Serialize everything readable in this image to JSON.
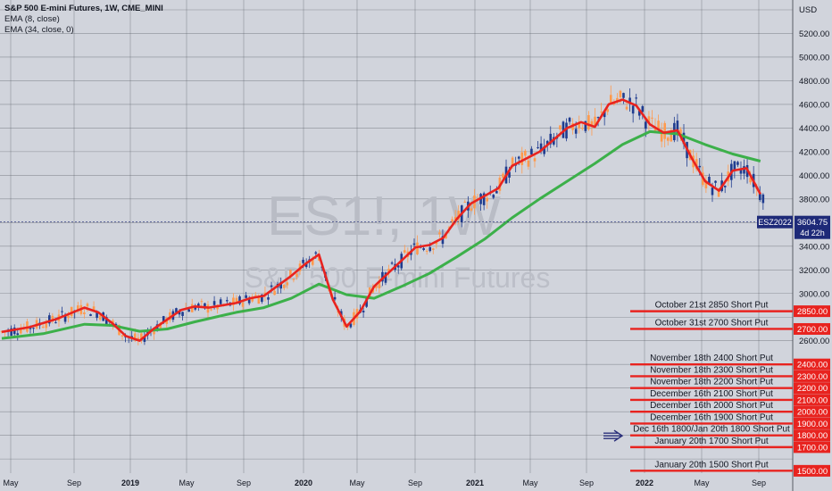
{
  "legend": {
    "title": "S&P 500 E-mini Futures, 1W, CME_MINI",
    "ema8": "EMA (8, close)",
    "ema34": "EMA (34, close, 0)"
  },
  "watermark": {
    "symbol": "ES1!, 1W",
    "name": "S&P 500 E-mini Futures"
  },
  "colors": {
    "background": "#d1d4dc",
    "grid": "#52555f",
    "up_candle": "#ff9a4d",
    "down_candle": "#1f3c8f",
    "ema8": "#e8231f",
    "ema34": "#3cb04a",
    "level_line": "#e8231f",
    "price_tag": "#1e2a78"
  },
  "chart_data": {
    "type": "line",
    "title": "S&P 500 E-mini Futures, 1W, CME_MINI",
    "y_axis": {
      "unit": "USD",
      "range": [
        1480,
        5420
      ],
      "ticks": [
        "5200.00",
        "5000.00",
        "4800.00",
        "4600.00",
        "4400.00",
        "4200.00",
        "4000.00",
        "3800.00",
        "3400.00",
        "3200.00",
        "3000.00",
        "2600.00"
      ]
    },
    "x_axis": {
      "ticks": [
        "May",
        "Sep",
        "2019",
        "May",
        "Sep",
        "2020",
        "May",
        "Sep",
        "2021",
        "May",
        "Sep",
        "2022",
        "May",
        "Sep"
      ],
      "start": "2018-03",
      "end": "2022-12"
    },
    "series": [
      {
        "name": "EMA (8, close)",
        "points": [
          [
            "2018-03",
            2675
          ],
          [
            "2018-05",
            2715
          ],
          [
            "2018-07",
            2785
          ],
          [
            "2018-09",
            2880
          ],
          [
            "2018-10",
            2840
          ],
          [
            "2018-11",
            2750
          ],
          [
            "2018-12",
            2640
          ],
          [
            "2019-01",
            2600
          ],
          [
            "2019-02",
            2700
          ],
          [
            "2019-04",
            2860
          ],
          [
            "2019-05",
            2890
          ],
          [
            "2019-06",
            2880
          ],
          [
            "2019-08",
            2920
          ],
          [
            "2019-09",
            2960
          ],
          [
            "2019-10",
            2980
          ],
          [
            "2019-12",
            3150
          ],
          [
            "2020-01",
            3250
          ],
          [
            "2020-02",
            3330
          ],
          [
            "2020-03",
            2950
          ],
          [
            "2020-04",
            2720
          ],
          [
            "2020-05",
            2850
          ],
          [
            "2020-06",
            3060
          ],
          [
            "2020-08",
            3280
          ],
          [
            "2020-09",
            3390
          ],
          [
            "2020-10",
            3410
          ],
          [
            "2020-11",
            3470
          ],
          [
            "2020-12",
            3630
          ],
          [
            "2021-01",
            3760
          ],
          [
            "2021-03",
            3890
          ],
          [
            "2021-04",
            4080
          ],
          [
            "2021-06",
            4200
          ],
          [
            "2021-08",
            4400
          ],
          [
            "2021-09",
            4450
          ],
          [
            "2021-10",
            4410
          ],
          [
            "2021-11",
            4600
          ],
          [
            "2021-12",
            4640
          ],
          [
            "2022-01",
            4590
          ],
          [
            "2022-02",
            4430
          ],
          [
            "2022-03",
            4360
          ],
          [
            "2022-04",
            4380
          ],
          [
            "2022-05",
            4150
          ],
          [
            "2022-06",
            3950
          ],
          [
            "2022-07",
            3870
          ],
          [
            "2022-08",
            4040
          ],
          [
            "2022-09",
            4060
          ],
          [
            "2022-10",
            3840
          ]
        ]
      },
      {
        "name": "EMA (34, close, 0)",
        "points": [
          [
            "2018-03",
            2620
          ],
          [
            "2018-06",
            2660
          ],
          [
            "2018-09",
            2740
          ],
          [
            "2018-11",
            2730
          ],
          [
            "2019-01",
            2680
          ],
          [
            "2019-03",
            2700
          ],
          [
            "2019-05",
            2760
          ],
          [
            "2019-08",
            2840
          ],
          [
            "2019-10",
            2880
          ],
          [
            "2019-12",
            2960
          ],
          [
            "2020-02",
            3080
          ],
          [
            "2020-04",
            2990
          ],
          [
            "2020-06",
            2960
          ],
          [
            "2020-08",
            3060
          ],
          [
            "2020-10",
            3170
          ],
          [
            "2020-12",
            3310
          ],
          [
            "2021-02",
            3460
          ],
          [
            "2021-04",
            3640
          ],
          [
            "2021-06",
            3800
          ],
          [
            "2021-08",
            3950
          ],
          [
            "2021-10",
            4100
          ],
          [
            "2021-12",
            4260
          ],
          [
            "2022-02",
            4370
          ],
          [
            "2022-04",
            4350
          ],
          [
            "2022-06",
            4260
          ],
          [
            "2022-08",
            4180
          ],
          [
            "2022-10",
            4120
          ]
        ]
      }
    ],
    "price_tags": [
      {
        "label": "ESZ2022",
        "price": "3604.75",
        "countdown": "4d 22h"
      }
    ],
    "annotations": [
      {
        "text": "October 21st 2850 Short Put",
        "level": "2850.00"
      },
      {
        "text": "October 31st 2700 Short Put",
        "level": "2700.00"
      },
      {
        "text": "November 18th 2400 Short Put",
        "level": "2400.00"
      },
      {
        "text": "November 18th 2300 Short Put",
        "level": "2300.00"
      },
      {
        "text": "November 18th 2200 Short Put",
        "level": "2200.00"
      },
      {
        "text": "December 16th 2100 Short Put",
        "level": "2100.00"
      },
      {
        "text": "December 16th 2000 Short Put",
        "level": "2000.00"
      },
      {
        "text": "December 16th 1900 Short Put",
        "level": "1900.00"
      },
      {
        "text": "Dec 16th 1800/Jan 20th 1800 Short Put",
        "level": "1800.00"
      },
      {
        "text": "January 20th 1700 Short Put",
        "level": "1700.00"
      },
      {
        "text": "January 20th 1500 Short Put",
        "level": "1500.00"
      }
    ]
  }
}
